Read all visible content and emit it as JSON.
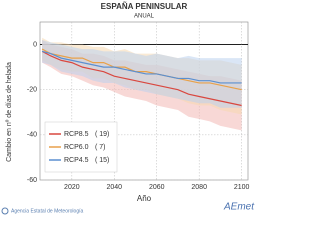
{
  "chart_data": {
    "type": "line",
    "title": "ESPAÑA PENINSULAR",
    "subtitle": "ANUAL",
    "y_label": "Cambio en nº de días de helada",
    "x_label": "Año",
    "x": [
      2006,
      2010,
      2015,
      2020,
      2025,
      2030,
      2035,
      2040,
      2045,
      2050,
      2055,
      2060,
      2065,
      2070,
      2075,
      2080,
      2085,
      2090,
      2095,
      2100
    ],
    "series": [
      {
        "name": "RCP8.5",
        "count_label": "( 19)",
        "color": "#d9473f",
        "band_color": "#f2b8b4",
        "values": [
          -3,
          -5,
          -7,
          -8,
          -10,
          -11,
          -12,
          -14,
          -15,
          -16,
          -17,
          -18,
          -19,
          -20,
          -22,
          -23,
          -24,
          -25,
          -26,
          -27
        ],
        "upper": [
          2,
          0,
          -1,
          -2,
          -4,
          -4,
          -5,
          -7,
          -7,
          -8,
          -9,
          -9,
          -10,
          -11,
          -12,
          -13,
          -14,
          -14,
          -15,
          -16
        ],
        "lower": [
          -8,
          -10,
          -13,
          -14,
          -16,
          -18,
          -19,
          -21,
          -23,
          -24,
          -25,
          -27,
          -28,
          -29,
          -32,
          -33,
          -34,
          -36,
          -37,
          -38
        ]
      },
      {
        "name": "RCP6.0",
        "count_label": "(  7)",
        "color": "#e8a14a",
        "band_color": "#f6d9b0",
        "values": [
          -2,
          -4,
          -5,
          -6,
          -6,
          -8,
          -8,
          -10,
          -10,
          -12,
          -12,
          -13,
          -14,
          -15,
          -16,
          -17,
          -17,
          -18,
          -19,
          -20
        ],
        "upper": [
          3,
          1,
          1,
          0,
          0,
          -1,
          -1,
          -3,
          -2,
          -4,
          -4,
          -4,
          -5,
          -6,
          -6,
          -7,
          -7,
          -7,
          -8,
          -9
        ],
        "lower": [
          -7,
          -9,
          -11,
          -12,
          -12,
          -15,
          -15,
          -17,
          -18,
          -20,
          -20,
          -22,
          -23,
          -24,
          -26,
          -27,
          -27,
          -29,
          -30,
          -31
        ]
      },
      {
        "name": "RCP4.5",
        "count_label": "( 15)",
        "color": "#5b8fd0",
        "band_color": "#bcd2ee",
        "values": [
          -3,
          -4,
          -6,
          -7,
          -8,
          -9,
          -10,
          -10,
          -11,
          -12,
          -13,
          -13,
          -14,
          -15,
          -15,
          -16,
          -16,
          -17,
          -17,
          -17
        ],
        "upper": [
          2,
          1,
          0,
          -1,
          -2,
          -2,
          -3,
          -3,
          -3,
          -4,
          -5,
          -4,
          -5,
          -6,
          -5,
          -6,
          -6,
          -6,
          -6,
          -6
        ],
        "lower": [
          -8,
          -9,
          -12,
          -13,
          -14,
          -16,
          -17,
          -17,
          -19,
          -20,
          -21,
          -22,
          -23,
          -24,
          -25,
          -26,
          -26,
          -28,
          -28,
          -28
        ]
      }
    ],
    "xlim": [
      2005,
      2103
    ],
    "ylim": [
      -60,
      10
    ],
    "xticks": [
      2020,
      2040,
      2060,
      2080,
      2100
    ],
    "yticks": [
      0,
      -20,
      -40,
      -60
    ],
    "grid": true,
    "legend": "lower left"
  },
  "footer": {
    "agency": "Agencia Estatal de Meteorología",
    "logo": "AEmet"
  }
}
